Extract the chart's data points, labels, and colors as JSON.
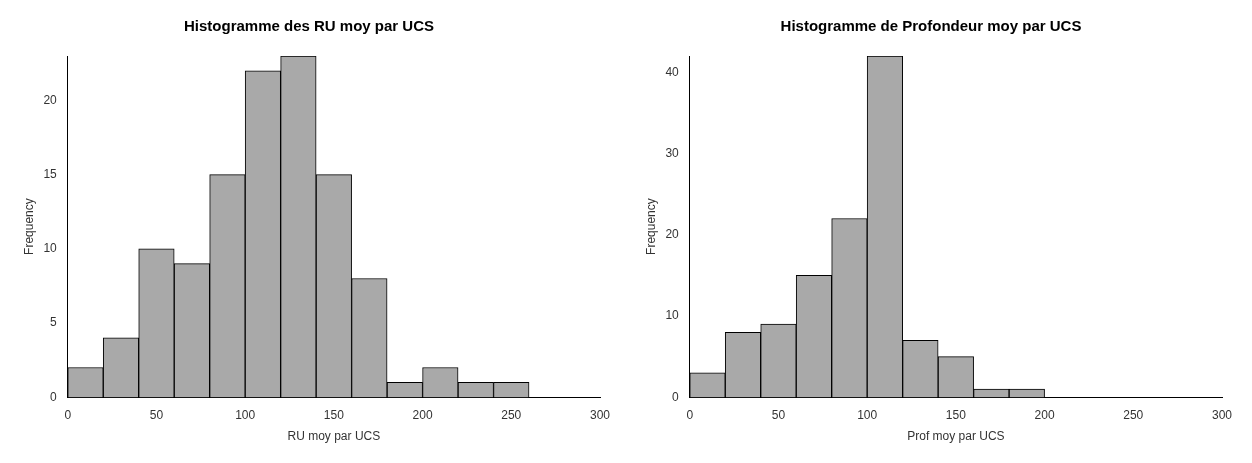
{
  "chart_data": [
    {
      "type": "histogram",
      "title": "Histogramme des RU moy par UCS",
      "xlabel": "RU moy par UCS",
      "ylabel": "Frequency",
      "bins": [
        0,
        20,
        40,
        60,
        80,
        100,
        120,
        140,
        160,
        180,
        200,
        220,
        240,
        260
      ],
      "values": [
        2,
        4,
        10,
        9,
        15,
        22,
        23,
        15,
        8,
        1,
        2,
        1,
        1
      ],
      "color": "#a9a9a9",
      "xlim": [
        0,
        300
      ],
      "xticks": [
        0,
        50,
        100,
        150,
        200,
        250,
        300
      ],
      "ylim": [
        0,
        23
      ],
      "yticks": [
        0,
        5,
        10,
        15,
        20
      ],
      "grid": false
    },
    {
      "type": "histogram",
      "title": "Histogramme de Profondeur moy par UCS",
      "xlabel": "Prof moy par UCS",
      "ylabel": "Frequency",
      "bins": [
        0,
        20,
        40,
        60,
        80,
        100,
        120,
        140,
        160,
        180,
        200
      ],
      "values": [
        3,
        8,
        9,
        15,
        22,
        42,
        7,
        5,
        1,
        1
      ],
      "color": "#a9a9a9",
      "xlim": [
        0,
        300
      ],
      "xticks": [
        0,
        50,
        100,
        150,
        200,
        250,
        300
      ],
      "ylim": [
        0,
        42
      ],
      "yticks": [
        0,
        10,
        20,
        30,
        40
      ],
      "grid": false
    }
  ]
}
